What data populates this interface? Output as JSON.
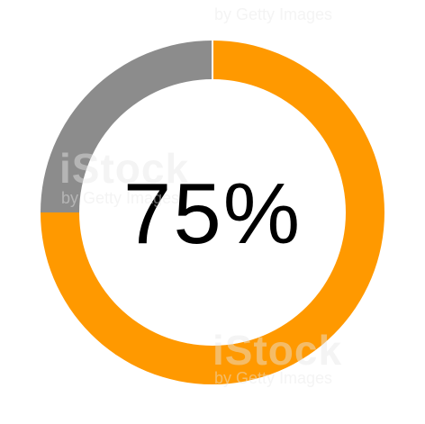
{
  "chart_data": {
    "type": "pie",
    "variant": "donut",
    "center_label": "75%",
    "slices": [
      {
        "value": 75,
        "color": "#FF9900"
      },
      {
        "value": 25,
        "color": "#8C8C8C"
      }
    ],
    "start_angle": "top",
    "direction": "clockwise"
  },
  "watermark": {
    "logo": "iStock",
    "byline": "by Getty Images"
  }
}
